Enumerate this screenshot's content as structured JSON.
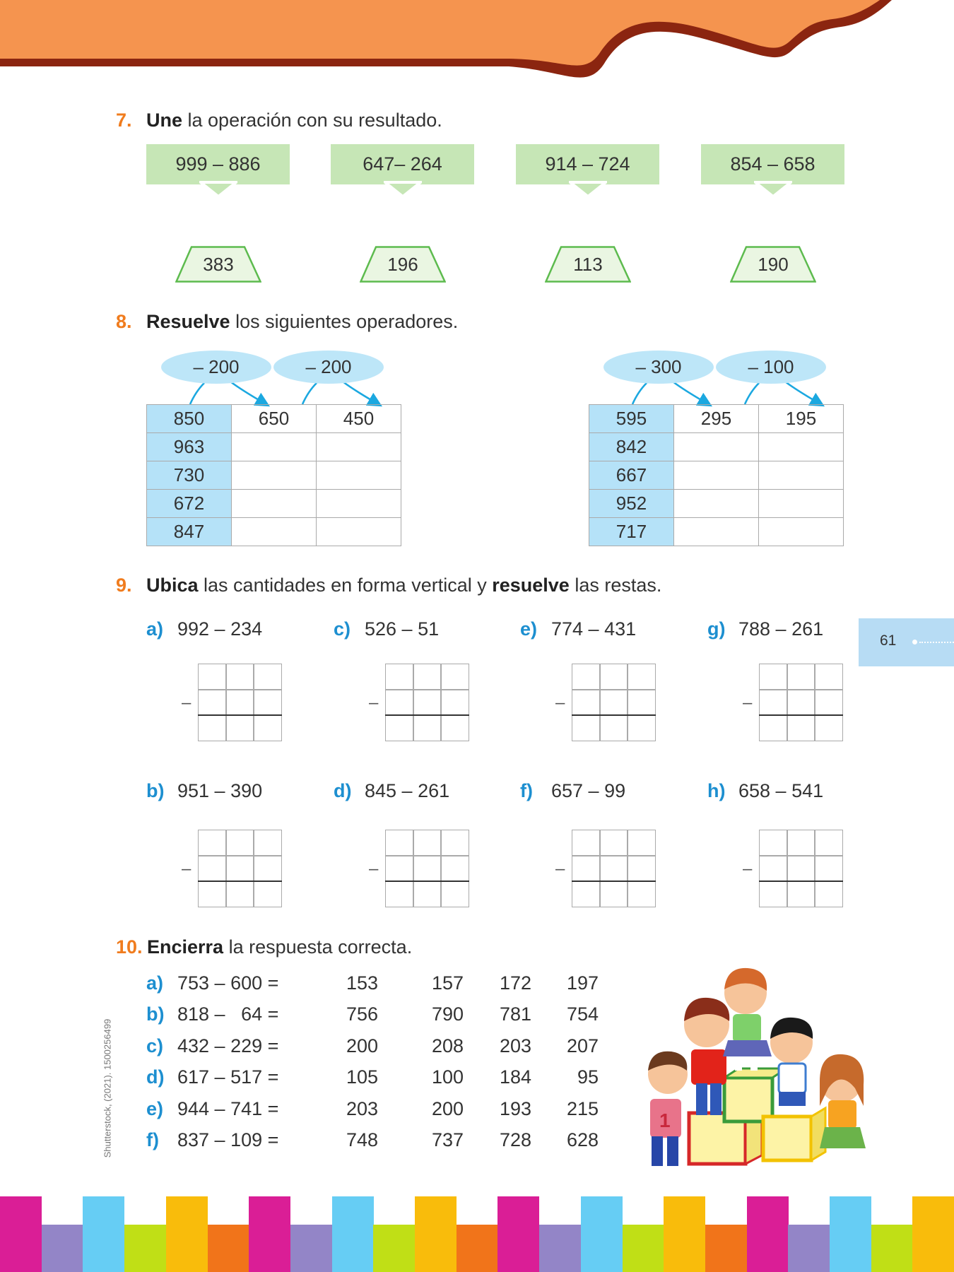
{
  "colors": {
    "header": "#F5944F",
    "header_edge": "#8B2510",
    "accent_orange": "#F07C1E",
    "accent_blue": "#1D8FD0",
    "green_box": "#C6E6B6",
    "table_blue": "#B5E2F8",
    "page_tab": "#B7DCF4",
    "stripes": [
      "#DA1E96",
      "#9385C7",
      "#66CDF4",
      "#C0DF16",
      "#F9BC0B",
      "#F1741A"
    ]
  },
  "ex7": {
    "number": "7.",
    "bold": "Une",
    "rest": " la operación con su resultado.",
    "operations": [
      "999 – 886",
      "647– 264",
      "914 – 724",
      "854 – 658"
    ],
    "results": [
      "383",
      "196",
      "113",
      "190"
    ]
  },
  "ex8": {
    "number": "8.",
    "bold": "Resuelve",
    "rest": " los siguientes operadores.",
    "tables": [
      {
        "operators": [
          "– 200",
          "– 200"
        ],
        "rows": [
          [
            "850",
            "650",
            "450"
          ],
          [
            "963",
            "",
            ""
          ],
          [
            "730",
            "",
            ""
          ],
          [
            "672",
            "",
            ""
          ],
          [
            "847",
            "",
            ""
          ]
        ]
      },
      {
        "operators": [
          "– 300",
          "– 100"
        ],
        "rows": [
          [
            "595",
            "295",
            "195"
          ],
          [
            "842",
            "",
            ""
          ],
          [
            "667",
            "",
            ""
          ],
          [
            "952",
            "",
            ""
          ],
          [
            "717",
            "",
            ""
          ]
        ]
      }
    ]
  },
  "ex9": {
    "number": "9.",
    "bold1": "Ubica",
    "mid": " las cantidades en forma vertical y ",
    "bold2": "resuelve",
    "rest": " las restas.",
    "minus_sign": "–",
    "items": [
      {
        "label": "a)",
        "expr": "992 – 234"
      },
      {
        "label": "c)",
        "expr": "526 – 51"
      },
      {
        "label": "e)",
        "expr": "774 – 431"
      },
      {
        "label": "g)",
        "expr": "788 – 261"
      },
      {
        "label": "b)",
        "expr": "951 – 390"
      },
      {
        "label": "d)",
        "expr": "845 – 261"
      },
      {
        "label": "f)",
        "expr": "657 – 99"
      },
      {
        "label": "h)",
        "expr": "658 – 541"
      }
    ]
  },
  "ex10": {
    "number": "10.",
    "bold": "Encierra",
    "rest": " la respuesta correcta.",
    "rows": [
      {
        "label": "a)",
        "expr": "753 – 600 =",
        "options": [
          "153",
          "157",
          "172",
          "197"
        ]
      },
      {
        "label": "b)",
        "expr": "818 –   64 =",
        "options": [
          "756",
          "790",
          "781",
          "754"
        ]
      },
      {
        "label": "c)",
        "expr": "432 – 229 =",
        "options": [
          "200",
          "208",
          "203",
          "207"
        ]
      },
      {
        "label": "d)",
        "expr": "617 – 517 =",
        "options": [
          "105",
          "100",
          "184",
          "95"
        ]
      },
      {
        "label": "e)",
        "expr": "944 – 741 =",
        "options": [
          "203",
          "200",
          "193",
          "215"
        ]
      },
      {
        "label": "f)",
        "expr": "837 – 109 =",
        "options": [
          "748",
          "737",
          "728",
          "628"
        ]
      }
    ]
  },
  "page_number": "61",
  "credit": "Shutterstock, (2021). 1500256499",
  "illustration": {
    "icon": "children-on-blocks-illustration",
    "shirt_number": "1"
  }
}
